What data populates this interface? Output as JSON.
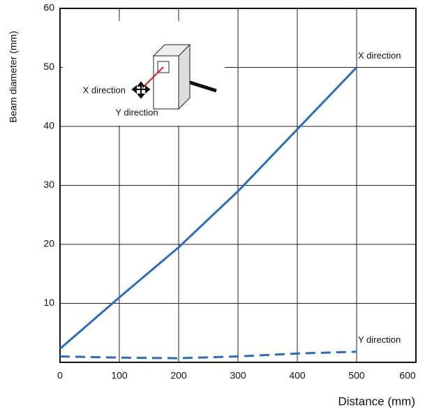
{
  "chart_data": {
    "type": "line",
    "x_label": "Distance (mm)",
    "y_label": "Beam diameter (mm)",
    "series": [
      {
        "name": "X direction",
        "color": "#2a6ebb",
        "dash": false,
        "x": [
          0,
          100,
          200,
          300,
          400,
          500
        ],
        "values": [
          2.3,
          11,
          19.5,
          29,
          39.5,
          50
        ]
      },
      {
        "name": "Y direction",
        "color": "#2a6ebb",
        "dash": true,
        "x": [
          0,
          100,
          200,
          300,
          400,
          500
        ],
        "values": [
          1,
          0.8,
          0.7,
          1,
          1.5,
          1.8
        ]
      }
    ],
    "inset_labels": [
      "X direction",
      "Y direction"
    ],
    "xlim": [
      0,
      600
    ],
    "xticks": [
      0,
      100,
      200,
      300,
      400,
      500,
      600
    ],
    "ylim": [
      0,
      60
    ],
    "yticks": [
      10,
      20,
      30,
      40,
      50,
      60
    ],
    "grid": true
  }
}
